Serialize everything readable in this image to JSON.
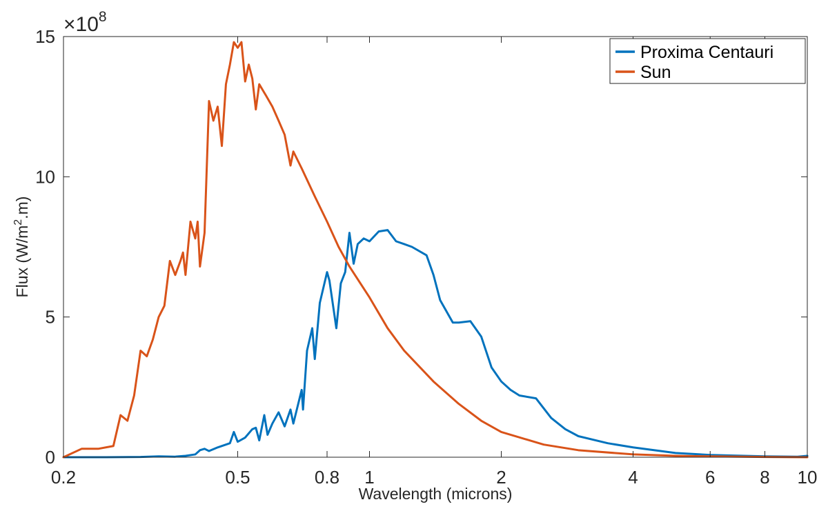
{
  "chart_data": {
    "type": "line",
    "xlabel": "Wavelength (microns)",
    "ylabel_prefix": "Flux (W/m",
    "ylabel_sup": "2",
    "ylabel_suffix": ".m)",
    "y_multiplier_prefix": "×10",
    "y_multiplier_exp": "8",
    "x_scale": "log",
    "xlim": [
      0.2,
      10
    ],
    "ylim": [
      0,
      15
    ],
    "x_ticks": [
      0.2,
      0.5,
      0.8,
      1,
      2,
      4,
      6,
      8,
      10
    ],
    "x_tick_labels": [
      "0.2",
      "0.5",
      "0.8",
      "1",
      "2",
      "4",
      "6",
      "8",
      "10"
    ],
    "y_ticks": [
      0,
      5,
      10,
      15
    ],
    "y_tick_labels": [
      "0",
      "5",
      "10",
      "15"
    ],
    "grid": false,
    "legend_position": "top-right",
    "series": [
      {
        "name": "Proxima Centauri",
        "color": "#0072BD",
        "points": [
          [
            0.2,
            0
          ],
          [
            0.25,
            0
          ],
          [
            0.3,
            0.01
          ],
          [
            0.33,
            0.03
          ],
          [
            0.36,
            0.02
          ],
          [
            0.38,
            0.05
          ],
          [
            0.4,
            0.1
          ],
          [
            0.41,
            0.25
          ],
          [
            0.42,
            0.3
          ],
          [
            0.43,
            0.22
          ],
          [
            0.45,
            0.35
          ],
          [
            0.47,
            0.45
          ],
          [
            0.48,
            0.5
          ],
          [
            0.49,
            0.9
          ],
          [
            0.5,
            0.55
          ],
          [
            0.52,
            0.7
          ],
          [
            0.54,
            1.0
          ],
          [
            0.55,
            1.05
          ],
          [
            0.56,
            0.6
          ],
          [
            0.575,
            1.5
          ],
          [
            0.585,
            0.8
          ],
          [
            0.6,
            1.2
          ],
          [
            0.62,
            1.6
          ],
          [
            0.64,
            1.1
          ],
          [
            0.66,
            1.7
          ],
          [
            0.67,
            1.2
          ],
          [
            0.7,
            2.4
          ],
          [
            0.705,
            1.7
          ],
          [
            0.72,
            3.8
          ],
          [
            0.74,
            4.6
          ],
          [
            0.75,
            3.5
          ],
          [
            0.77,
            5.5
          ],
          [
            0.8,
            6.6
          ],
          [
            0.81,
            6.3
          ],
          [
            0.84,
            4.6
          ],
          [
            0.86,
            6.2
          ],
          [
            0.88,
            6.6
          ],
          [
            0.9,
            8.0
          ],
          [
            0.92,
            6.9
          ],
          [
            0.94,
            7.6
          ],
          [
            0.97,
            7.8
          ],
          [
            1.0,
            7.7
          ],
          [
            1.05,
            8.05
          ],
          [
            1.1,
            8.1
          ],
          [
            1.15,
            7.7
          ],
          [
            1.2,
            7.6
          ],
          [
            1.25,
            7.5
          ],
          [
            1.35,
            7.2
          ],
          [
            1.4,
            6.5
          ],
          [
            1.45,
            5.6
          ],
          [
            1.55,
            4.8
          ],
          [
            1.6,
            4.8
          ],
          [
            1.7,
            4.85
          ],
          [
            1.8,
            4.3
          ],
          [
            1.9,
            3.2
          ],
          [
            2.0,
            2.7
          ],
          [
            2.1,
            2.4
          ],
          [
            2.2,
            2.2
          ],
          [
            2.4,
            2.1
          ],
          [
            2.6,
            1.4
          ],
          [
            2.8,
            1.0
          ],
          [
            3.0,
            0.75
          ],
          [
            3.5,
            0.5
          ],
          [
            4.0,
            0.35
          ],
          [
            5.0,
            0.15
          ],
          [
            6.0,
            0.08
          ],
          [
            8.0,
            0.03
          ],
          [
            9.5,
            0.02
          ],
          [
            10.0,
            0.05
          ]
        ]
      },
      {
        "name": "Sun",
        "color": "#D95319",
        "points": [
          [
            0.2,
            0
          ],
          [
            0.22,
            0.3
          ],
          [
            0.24,
            0.3
          ],
          [
            0.26,
            0.4
          ],
          [
            0.27,
            1.5
          ],
          [
            0.28,
            1.3
          ],
          [
            0.29,
            2.2
          ],
          [
            0.3,
            3.8
          ],
          [
            0.31,
            3.6
          ],
          [
            0.32,
            4.2
          ],
          [
            0.33,
            5.0
          ],
          [
            0.34,
            5.4
          ],
          [
            0.35,
            7.0
          ],
          [
            0.36,
            6.5
          ],
          [
            0.37,
            7.0
          ],
          [
            0.375,
            7.3
          ],
          [
            0.38,
            6.5
          ],
          [
            0.39,
            8.4
          ],
          [
            0.4,
            7.8
          ],
          [
            0.405,
            8.4
          ],
          [
            0.41,
            6.8
          ],
          [
            0.42,
            8.0
          ],
          [
            0.43,
            12.7
          ],
          [
            0.44,
            12.0
          ],
          [
            0.45,
            12.5
          ],
          [
            0.46,
            11.1
          ],
          [
            0.47,
            13.3
          ],
          [
            0.48,
            14.0
          ],
          [
            0.49,
            14.8
          ],
          [
            0.5,
            14.6
          ],
          [
            0.51,
            14.8
          ],
          [
            0.52,
            13.4
          ],
          [
            0.53,
            14.0
          ],
          [
            0.54,
            13.5
          ],
          [
            0.55,
            12.4
          ],
          [
            0.56,
            13.3
          ],
          [
            0.58,
            12.9
          ],
          [
            0.6,
            12.5
          ],
          [
            0.62,
            12.0
          ],
          [
            0.64,
            11.5
          ],
          [
            0.66,
            10.4
          ],
          [
            0.67,
            10.9
          ],
          [
            0.7,
            10.3
          ],
          [
            0.75,
            9.3
          ],
          [
            0.8,
            8.4
          ],
          [
            0.85,
            7.5
          ],
          [
            0.9,
            6.8
          ],
          [
            1.0,
            5.7
          ],
          [
            1.1,
            4.6
          ],
          [
            1.2,
            3.8
          ],
          [
            1.4,
            2.7
          ],
          [
            1.6,
            1.9
          ],
          [
            1.8,
            1.3
          ],
          [
            2.0,
            0.9
          ],
          [
            2.5,
            0.45
          ],
          [
            3.0,
            0.25
          ],
          [
            4.0,
            0.1
          ],
          [
            5.0,
            0.05
          ],
          [
            6.0,
            0.03
          ],
          [
            8.0,
            0.01
          ],
          [
            10.0,
            0.0
          ]
        ]
      }
    ]
  }
}
